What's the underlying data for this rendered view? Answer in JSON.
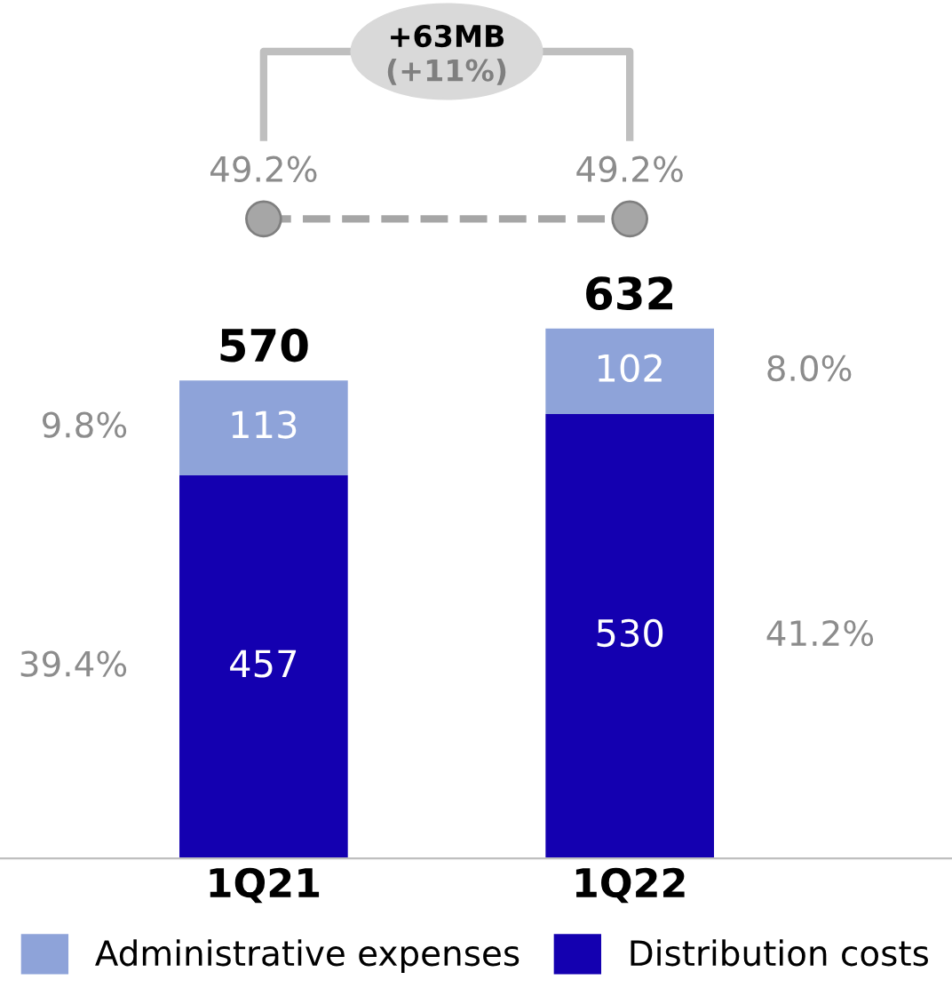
{
  "chart_data": {
    "type": "bar",
    "stacked": true,
    "categories": [
      "1Q21",
      "1Q22"
    ],
    "series": [
      {
        "name": "Distribution costs",
        "color": "#1400b0",
        "values": [
          457,
          530
        ]
      },
      {
        "name": "Administrative expenses",
        "color": "#8ea3d9",
        "values": [
          113,
          102
        ]
      }
    ],
    "data_labels": true,
    "totals": [
      "570",
      "632"
    ],
    "legend": "bottom",
    "annotations": [
      "39.4%",
      "9.8%",
      "41.2%",
      "8.0%",
      "49.2%",
      "49.2%",
      "+63MB\n(+11%)"
    ]
  }
}
